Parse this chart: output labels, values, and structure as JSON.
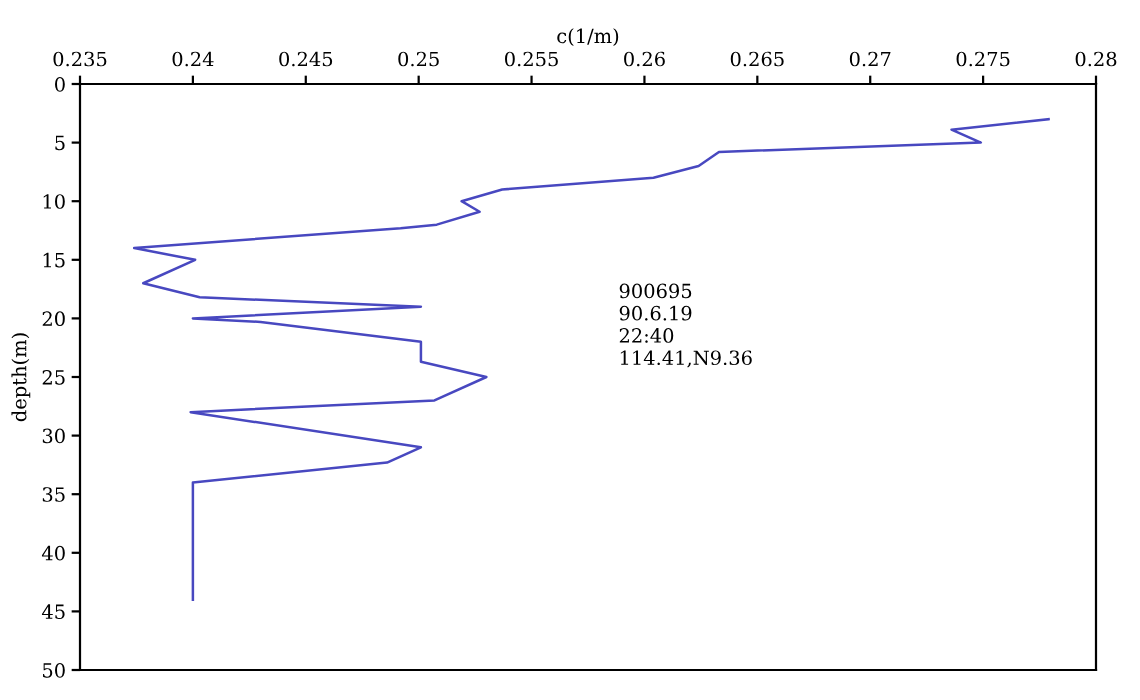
{
  "chart_data": {
    "type": "line",
    "xlabel": "c(1/m)",
    "ylabel": "depth(m)",
    "xlim": [
      0.235,
      0.28
    ],
    "xticks": [
      0.235,
      0.24,
      0.245,
      0.25,
      0.255,
      0.26,
      0.265,
      0.27,
      0.275,
      0.28
    ],
    "ylim": [
      50,
      0
    ],
    "yticks": [
      0,
      5,
      10,
      15,
      20,
      25,
      30,
      35,
      40,
      45,
      50
    ],
    "grid": false,
    "legend": false,
    "annotations": [
      "900695",
      "90.6.19",
      "22:40",
      "114.41,N9.36"
    ],
    "series": [
      {
        "color": "#4848c0",
        "x": [
          0.2779,
          0.2736,
          0.2749,
          0.2633,
          0.2624,
          0.2604,
          0.2537,
          0.2519,
          0.2527,
          0.2508,
          0.2492,
          0.2374,
          0.2401,
          0.2378,
          0.2403,
          0.2501,
          0.24,
          0.243,
          0.2501,
          0.2501,
          0.253,
          0.2507,
          0.2399,
          0.2501,
          0.2486,
          0.24,
          0.24,
          0.24
        ],
        "values": [
          3,
          3.9,
          5,
          5.8,
          7,
          8,
          9,
          10,
          10.9,
          12,
          12.3,
          14,
          15,
          17,
          18.2,
          19,
          20,
          20.3,
          22,
          23.7,
          25,
          27,
          28,
          31,
          32.3,
          34,
          35,
          44
        ]
      }
    ]
  }
}
